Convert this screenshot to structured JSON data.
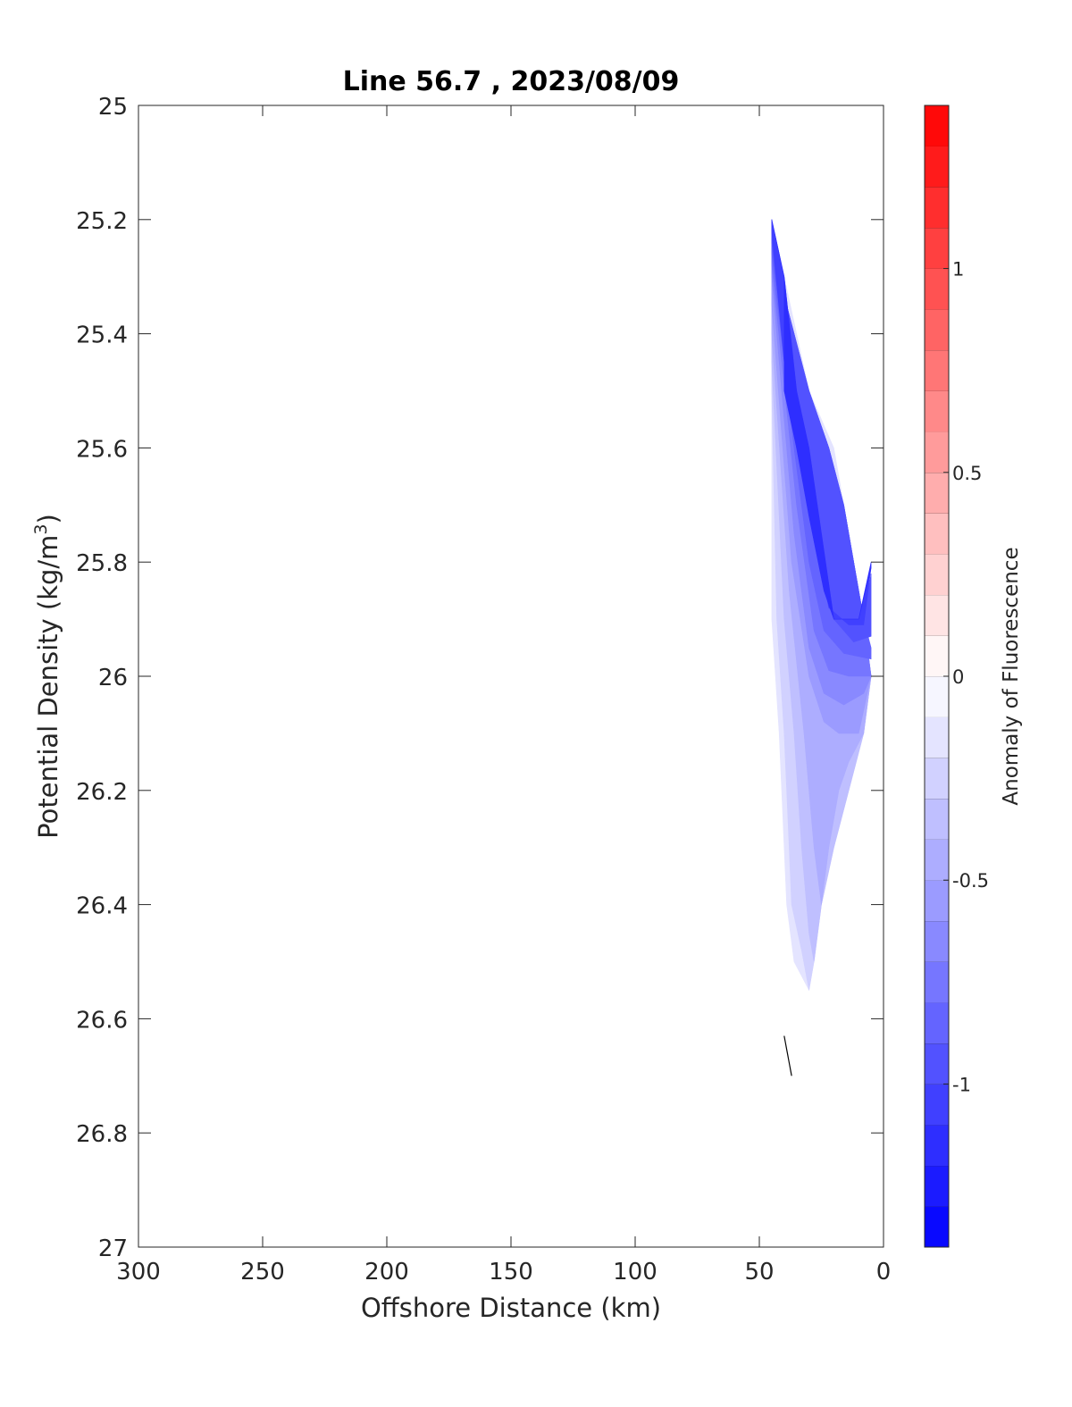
{
  "chart_data": {
    "type": "contour",
    "title": "Line 56.7 , 2023/08/09",
    "xlabel": "Offshore Distance (km)",
    "ylabel": "Potential Density (kg/m³)",
    "ylabel_parts": {
      "main": "Potential Density (kg/m",
      "sup": "3",
      "close": ")"
    },
    "xlim": [
      300,
      0
    ],
    "ylim": [
      25,
      27
    ],
    "x_reversed": true,
    "y_reversed": true,
    "x_ticks": [
      300,
      250,
      200,
      150,
      100,
      50,
      0
    ],
    "x_tick_labels": [
      "300",
      "250",
      "200",
      "150",
      "100",
      "50",
      "0"
    ],
    "y_ticks": [
      25,
      25.2,
      25.4,
      25.6,
      25.8,
      26,
      26.2,
      26.4,
      26.6,
      26.8,
      27
    ],
    "y_tick_labels": [
      "25",
      "25.2",
      "25.4",
      "25.6",
      "25.8",
      "26",
      "26.2",
      "26.4",
      "26.6",
      "26.8",
      "27"
    ],
    "grid": false,
    "colorbar": {
      "label": "Anomaly of Fluorescence",
      "range": [
        -1.4,
        1.4
      ],
      "levels": 28,
      "low_color": "#0000ff",
      "mid_color": "#ffffff",
      "high_color": "#ff0000",
      "ticks": [
        1,
        0.5,
        0,
        -0.5,
        -1
      ],
      "tick_labels": [
        "1",
        "0.5",
        "0",
        "-0.5",
        "-1"
      ]
    },
    "contour_bands": [
      {
        "value": -0.15,
        "polygon": [
          [
            45,
            25.9
          ],
          [
            42,
            26.1
          ],
          [
            40,
            26.3
          ],
          [
            39,
            26.4
          ],
          [
            36,
            26.5
          ],
          [
            30,
            26.55
          ],
          [
            28,
            26.5
          ],
          [
            25,
            26.4
          ],
          [
            20,
            26.3
          ],
          [
            14,
            26.2
          ],
          [
            8,
            26.1
          ],
          [
            5,
            26
          ],
          [
            8,
            25.9
          ],
          [
            12,
            25.8
          ],
          [
            16,
            25.7
          ],
          [
            20,
            25.6
          ],
          [
            25,
            25.55
          ],
          [
            30,
            25.5
          ],
          [
            35,
            25.4
          ],
          [
            40,
            25.3
          ],
          [
            45,
            25.2
          ]
        ]
      },
      {
        "value": -0.25,
        "polygon": [
          [
            45,
            25.5
          ],
          [
            43,
            25.9
          ],
          [
            40,
            26.1
          ],
          [
            38,
            26.3
          ],
          [
            37,
            26.4
          ],
          [
            33,
            26.48
          ],
          [
            30,
            26.55
          ],
          [
            28,
            26.5
          ],
          [
            25,
            26.4
          ],
          [
            20,
            26.3
          ],
          [
            14,
            26.2
          ],
          [
            8,
            26.1
          ],
          [
            5,
            26
          ],
          [
            8,
            25.9
          ],
          [
            12,
            25.8
          ],
          [
            16,
            25.7
          ],
          [
            22,
            25.6
          ],
          [
            30,
            25.5
          ],
          [
            36,
            25.4
          ],
          [
            42,
            25.3
          ],
          [
            45,
            25.2
          ]
        ]
      },
      {
        "value": -0.35,
        "polygon": [
          [
            45,
            25.45
          ],
          [
            40,
            25.9
          ],
          [
            36,
            26.1
          ],
          [
            33,
            26.3
          ],
          [
            30,
            26.45
          ],
          [
            28,
            26.5
          ],
          [
            25,
            26.4
          ],
          [
            20,
            26.3
          ],
          [
            14,
            26.2
          ],
          [
            8,
            26.1
          ],
          [
            5,
            26
          ],
          [
            8,
            25.9
          ],
          [
            12,
            25.8
          ],
          [
            16,
            25.7
          ],
          [
            22,
            25.6
          ],
          [
            30,
            25.5
          ],
          [
            36,
            25.4
          ],
          [
            42,
            25.3
          ],
          [
            45,
            25.2
          ]
        ]
      },
      {
        "value": -0.45,
        "polygon": [
          [
            45,
            25.4
          ],
          [
            38,
            25.85
          ],
          [
            32,
            26.1
          ],
          [
            28,
            26.3
          ],
          [
            25,
            26.4
          ],
          [
            22,
            26.3
          ],
          [
            18,
            26.2
          ],
          [
            14,
            26.15
          ],
          [
            8,
            26.1
          ],
          [
            5,
            26
          ],
          [
            8,
            25.9
          ],
          [
            12,
            25.8
          ],
          [
            16,
            25.7
          ],
          [
            22,
            25.6
          ],
          [
            30,
            25.5
          ],
          [
            36,
            25.4
          ],
          [
            42,
            25.3
          ],
          [
            45,
            25.2
          ]
        ]
      },
      {
        "value": -0.55,
        "polygon": [
          [
            45,
            25.35
          ],
          [
            37,
            25.8
          ],
          [
            30,
            26
          ],
          [
            24,
            26.08
          ],
          [
            18,
            26.1
          ],
          [
            10,
            26.1
          ],
          [
            5,
            26
          ],
          [
            8,
            25.9
          ],
          [
            12,
            25.8
          ],
          [
            16,
            25.7
          ],
          [
            22,
            25.6
          ],
          [
            30,
            25.5
          ],
          [
            36,
            25.4
          ],
          [
            42,
            25.3
          ],
          [
            45,
            25.2
          ]
        ]
      },
      {
        "value": -0.65,
        "polygon": [
          [
            45,
            25.3
          ],
          [
            36,
            25.75
          ],
          [
            30,
            25.95
          ],
          [
            24,
            26.03
          ],
          [
            16,
            26.05
          ],
          [
            8,
            26.03
          ],
          [
            5,
            26
          ],
          [
            8,
            25.9
          ],
          [
            12,
            25.8
          ],
          [
            16,
            25.7
          ],
          [
            22,
            25.6
          ],
          [
            30,
            25.5
          ],
          [
            36,
            25.4
          ],
          [
            42,
            25.3
          ],
          [
            45,
            25.2
          ]
        ]
      },
      {
        "value": -0.75,
        "polygon": [
          [
            45,
            25.28
          ],
          [
            35,
            25.7
          ],
          [
            28,
            25.92
          ],
          [
            22,
            25.99
          ],
          [
            14,
            26.0
          ],
          [
            5,
            26
          ],
          [
            8,
            25.9
          ],
          [
            12,
            25.8
          ],
          [
            16,
            25.7
          ],
          [
            22,
            25.6
          ],
          [
            30,
            25.5
          ],
          [
            36,
            25.4
          ],
          [
            42,
            25.3
          ],
          [
            45,
            25.2
          ]
        ]
      },
      {
        "value": -0.85,
        "polygon": [
          [
            45,
            25.26
          ],
          [
            36,
            25.6
          ],
          [
            30,
            25.8
          ],
          [
            24,
            25.92
          ],
          [
            16,
            25.96
          ],
          [
            5,
            25.97
          ],
          [
            5,
            25.95
          ],
          [
            8,
            25.9
          ],
          [
            12,
            25.8
          ],
          [
            16,
            25.7
          ],
          [
            22,
            25.6
          ],
          [
            30,
            25.5
          ],
          [
            36,
            25.4
          ],
          [
            42,
            25.3
          ],
          [
            45,
            25.2
          ]
        ]
      },
      {
        "value": -0.95,
        "polygon": [
          [
            45,
            25.24
          ],
          [
            38,
            25.5
          ],
          [
            32,
            25.65
          ],
          [
            26,
            25.8
          ],
          [
            20,
            25.9
          ],
          [
            12,
            25.94
          ],
          [
            5,
            25.93
          ],
          [
            5,
            25.82
          ],
          [
            8,
            25.9
          ],
          [
            12,
            25.8
          ],
          [
            16,
            25.7
          ],
          [
            22,
            25.6
          ],
          [
            30,
            25.5
          ],
          [
            36,
            25.4
          ],
          [
            42,
            25.3
          ],
          [
            45,
            25.2
          ]
        ]
      },
      {
        "value": -1.05,
        "polygon": [
          [
            45,
            25.22
          ],
          [
            40,
            25.45
          ],
          [
            35,
            25.6
          ],
          [
            28,
            25.75
          ],
          [
            22,
            25.88
          ],
          [
            14,
            25.91
          ],
          [
            8,
            25.91
          ],
          [
            5,
            25.81
          ],
          [
            10,
            25.9
          ],
          [
            20,
            25.9
          ],
          [
            25,
            25.75
          ],
          [
            30,
            25.6
          ],
          [
            35,
            25.5
          ],
          [
            40,
            25.3
          ],
          [
            45,
            25.2
          ]
        ]
      },
      {
        "value": -1.15,
        "polygon": [
          [
            45,
            25.2
          ],
          [
            40,
            25.3
          ],
          [
            40,
            25.5
          ],
          [
            35,
            25.6
          ],
          [
            30,
            25.72
          ],
          [
            24,
            25.85
          ],
          [
            20,
            25.9
          ],
          [
            10,
            25.9
          ],
          [
            5,
            25.81
          ],
          [
            5,
            25.8
          ],
          [
            10,
            25.9
          ],
          [
            20,
            25.9
          ],
          [
            25,
            25.75
          ],
          [
            30,
            25.6
          ],
          [
            35,
            25.5
          ],
          [
            40,
            25.3
          ]
        ]
      }
    ],
    "line_segment": [
      [
        40,
        26.63
      ],
      [
        37,
        26.7
      ]
    ]
  }
}
